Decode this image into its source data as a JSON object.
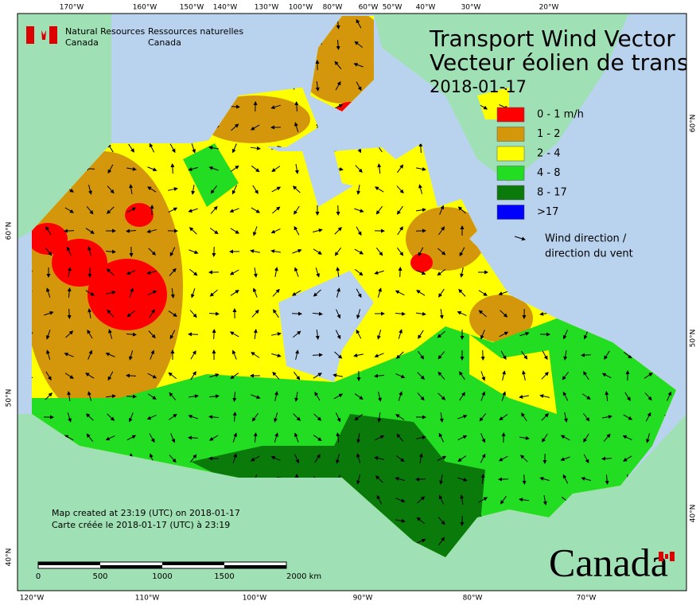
{
  "header": {
    "agency_en": "Natural Resources",
    "country_en": "Canada",
    "agency_fr": "Ressources naturelles",
    "country_fr": "Canada"
  },
  "title": {
    "en": "Transport Wind Vector",
    "fr": "Vecteur éolien de transp",
    "date": "2018-01-17"
  },
  "legend": {
    "items": [
      {
        "label": "0 - 1 m/h",
        "color": "#ff0000"
      },
      {
        "label": "1 - 2",
        "color": "#d4960a"
      },
      {
        "label": "2 - 4",
        "color": "#ffff00"
      },
      {
        "label": "4 - 8",
        "color": "#22dd22"
      },
      {
        "label": "8 - 17",
        "color": "#0a7a0a"
      },
      {
        "label": ">17",
        "color": "#0000ff"
      }
    ],
    "arrow_label": [
      "Wind direction /",
      "direction du vent"
    ]
  },
  "top_longitudes": [
    "170°W",
    "160°W",
    "150°W",
    "140°W",
    "130°W",
    "100°W",
    "80°W",
    "60°W",
    "50°W",
    "40°W",
    "30°W",
    "20°W"
  ],
  "bottom_longitudes": [
    "120°W",
    "110°W",
    "100°W",
    "90°W",
    "80°W",
    "70°W"
  ],
  "left_latitudes": [
    "60°N",
    "50°N",
    "40°N"
  ],
  "right_latitudes": [
    "60°N",
    "50°N",
    "40°N"
  ],
  "footer": {
    "created_en": "Map created at 23:19 (UTC) on 2018-01-17",
    "created_fr": "Carte créée le 2018-01-17 (UTC) à 23:19"
  },
  "scale": {
    "labels": [
      "0",
      "500",
      "1000",
      "1500",
      "2000 km"
    ]
  },
  "wordmark": "Canada"
}
